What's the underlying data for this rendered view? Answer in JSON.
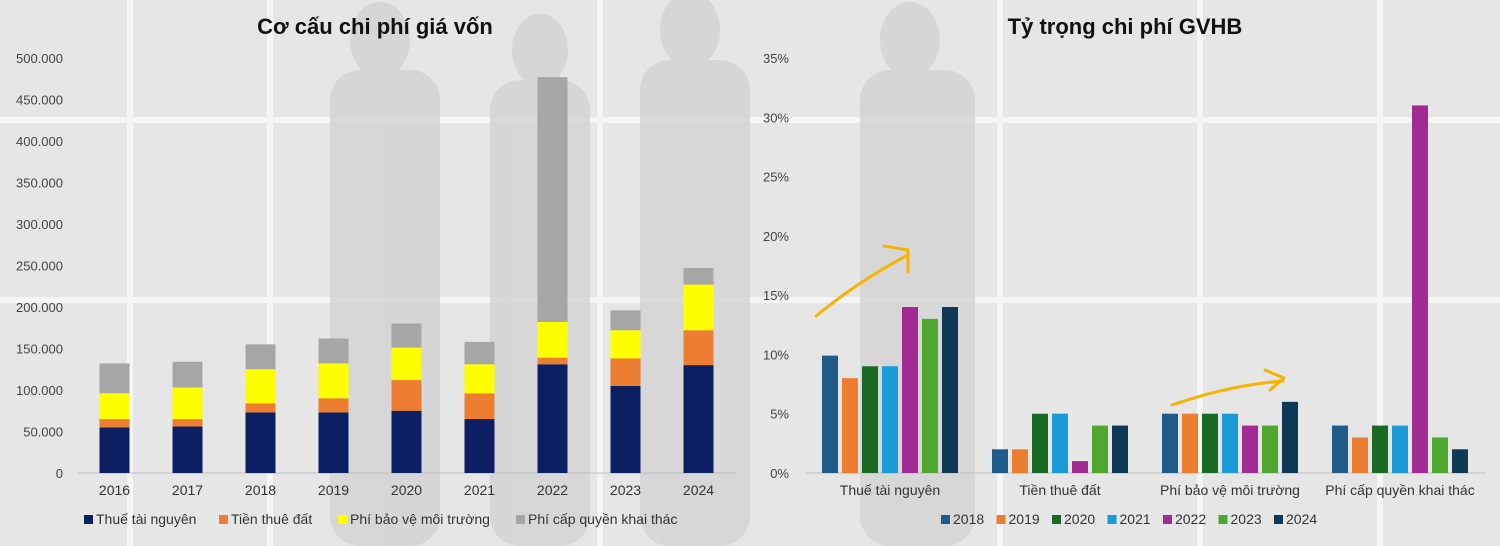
{
  "chart_data": [
    {
      "type": "bar",
      "stacked": true,
      "title": "Cơ cấu chi phí giá vốn",
      "xlabel": "",
      "ylabel": "",
      "ylim": [
        0,
        500000
      ],
      "yticks": [
        "0",
        "50.000",
        "100.000",
        "150.000",
        "200.000",
        "250.000",
        "300.000",
        "350.000",
        "400.000",
        "450.000",
        "500.000"
      ],
      "categories": [
        "2016",
        "2017",
        "2018",
        "2019",
        "2020",
        "2021",
        "2022",
        "2023",
        "2024"
      ],
      "legend_position": "bottom",
      "series": [
        {
          "name": "Thuế tài nguyên",
          "color": "#0c1f63",
          "values": [
            55000,
            56000,
            73000,
            73000,
            75000,
            65000,
            131000,
            105000,
            130000
          ]
        },
        {
          "name": "Tiền thuê đất",
          "color": "#ed7d31",
          "values": [
            10000,
            9000,
            11000,
            17000,
            37000,
            31000,
            8000,
            33000,
            42000
          ]
        },
        {
          "name": "Phí bảo vệ môi trường",
          "color": "#ffff00",
          "values": [
            31000,
            38000,
            41000,
            42000,
            39000,
            35000,
            43000,
            34000,
            55000
          ]
        },
        {
          "name": "Phí cấp quyền khai thác",
          "color": "#a6a6a6",
          "values": [
            36000,
            31000,
            30000,
            30000,
            29000,
            27000,
            295000,
            24000,
            20000
          ]
        }
      ]
    },
    {
      "type": "bar",
      "stacked": false,
      "title": "Tỷ trọng chi phí GVHB",
      "xlabel": "",
      "ylabel": "",
      "ylim": [
        0,
        35
      ],
      "yticks": [
        "0%",
        "5%",
        "10%",
        "15%",
        "20%",
        "25%",
        "30%",
        "35%"
      ],
      "categories": [
        "Thuế tài nguyên",
        "Tiền thuê đất",
        "Phí bảo vệ môi trường",
        "Phí cấp quyền khai thác"
      ],
      "legend_position": "bottom",
      "annotations": [
        "arrow over Thuế tài nguyên",
        "arrow over Phí bảo vệ môi trường"
      ],
      "annotation_color": "#f4b400",
      "series": [
        {
          "name": "2018",
          "color": "#1f5c8a",
          "values": [
            9.9,
            2,
            5,
            4
          ]
        },
        {
          "name": "2019",
          "color": "#ed7d31",
          "values": [
            8,
            2,
            5,
            3
          ]
        },
        {
          "name": "2020",
          "color": "#196b24",
          "values": [
            9,
            5,
            5,
            4
          ]
        },
        {
          "name": "2021",
          "color": "#1a9ad6",
          "values": [
            9,
            5,
            5,
            4
          ]
        },
        {
          "name": "2022",
          "color": "#a02b93",
          "values": [
            14,
            1,
            4,
            31
          ]
        },
        {
          "name": "2023",
          "color": "#4ea72e",
          "values": [
            13,
            4,
            4,
            3
          ]
        },
        {
          "name": "2024",
          "color": "#0e3a55",
          "values": [
            14,
            4,
            6,
            2
          ]
        }
      ]
    }
  ]
}
